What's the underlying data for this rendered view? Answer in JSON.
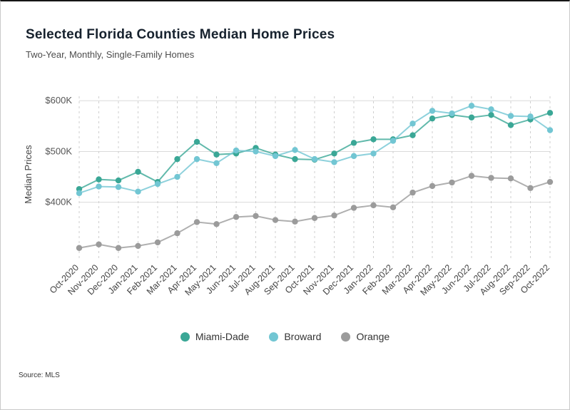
{
  "header": {
    "title": "Selected Florida Counties Median Home Prices",
    "subtitle": "Two-Year, Monthly, Single-Family Homes"
  },
  "footer": {
    "source": "Source: MLS"
  },
  "chart_data": {
    "type": "line",
    "title": "Selected Florida Counties Median Home Prices",
    "subtitle": "Two-Year, Monthly, Single-Family Homes",
    "xlabel": "",
    "ylabel": "Median Prices",
    "ylim": [
      290,
      620
    ],
    "yticks": [
      {
        "value": 400,
        "label": "$400K"
      },
      {
        "value": 500,
        "label": "$500K"
      },
      {
        "value": 600,
        "label": "$600K"
      }
    ],
    "grid": {
      "horizontal": "solid",
      "vertical": "dashed"
    },
    "legend_position": "bottom",
    "units": "USD thousands",
    "categories": [
      "Oct-2020",
      "Nov-2020",
      "Dec-2020",
      "Jan-2021",
      "Feb-2021",
      "Mar-2021",
      "Apr-2021",
      "May-2021",
      "Jun-2021",
      "Jul-2021",
      "Aug-2021",
      "Sep-2021",
      "Oct-2021",
      "Nov-2021",
      "Dec-2021",
      "Jan-2022",
      "Feb-2022",
      "Mar-2022",
      "Apr-2022",
      "May-2022",
      "Jun-2022",
      "Jul-2022",
      "Aug-2022",
      "Sep-2022",
      "Oct-2022"
    ],
    "series": [
      {
        "name": "Miami-Dade",
        "color": "#3aa796",
        "values": [
          426,
          445,
          443,
          460,
          440,
          485,
          519,
          494,
          496,
          507,
          494,
          485,
          484,
          496,
          517,
          524,
          524,
          532,
          565,
          572,
          567,
          572,
          552,
          563,
          576
        ]
      },
      {
        "name": "Broward",
        "color": "#72c6d3",
        "values": [
          418,
          431,
          430,
          421,
          436,
          450,
          485,
          477,
          502,
          500,
          491,
          503,
          485,
          479,
          491,
          496,
          521,
          555,
          580,
          575,
          590,
          583,
          570,
          569,
          542
        ]
      },
      {
        "name": "Orange",
        "color": "#9b9b9b",
        "values": [
          310,
          317,
          310,
          314,
          321,
          339,
          361,
          357,
          371,
          373,
          365,
          362,
          369,
          374,
          389,
          394,
          390,
          419,
          432,
          439,
          452,
          448,
          447,
          428,
          440
        ]
      }
    ]
  }
}
